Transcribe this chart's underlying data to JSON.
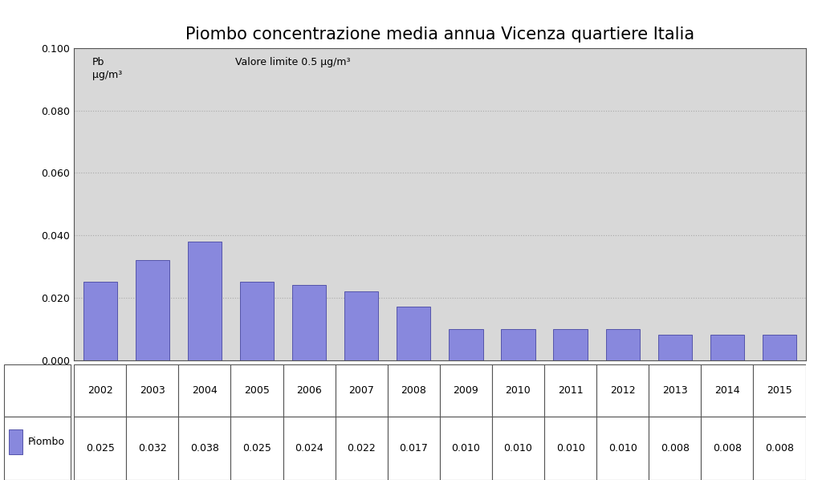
{
  "title": "Piombo concentrazione media annua Vicenza quartiere Italia",
  "years": [
    2002,
    2003,
    2004,
    2005,
    2006,
    2007,
    2008,
    2009,
    2010,
    2011,
    2012,
    2013,
    2014,
    2015
  ],
  "values": [
    0.025,
    0.032,
    0.038,
    0.025,
    0.024,
    0.022,
    0.017,
    0.01,
    0.01,
    0.01,
    0.01,
    0.008,
    0.008,
    0.008
  ],
  "bar_color": "#8888DD",
  "bar_edge_color": "#5555AA",
  "ylim": [
    0.0,
    0.1
  ],
  "yticks": [
    0.0,
    0.02,
    0.04,
    0.06,
    0.08,
    0.1
  ],
  "ylabel_inner": "Pb\nμg/m³",
  "annotation_text": "Valore limite 0.5 μg/m³",
  "legend_label": "Piombo",
  "plot_bg_color": "#D8D8D8",
  "fig_bg_color": "#FFFFFF",
  "grid_color": "#AAAAAA",
  "title_fontsize": 15,
  "tick_fontsize": 9,
  "table_values": [
    "0.025",
    "0.032",
    "0.038",
    "0.025",
    "0.024",
    "0.022",
    "0.017",
    "0.010",
    "0.010",
    "0.010",
    "0.010",
    "0.008",
    "0.008",
    "0.008"
  ]
}
